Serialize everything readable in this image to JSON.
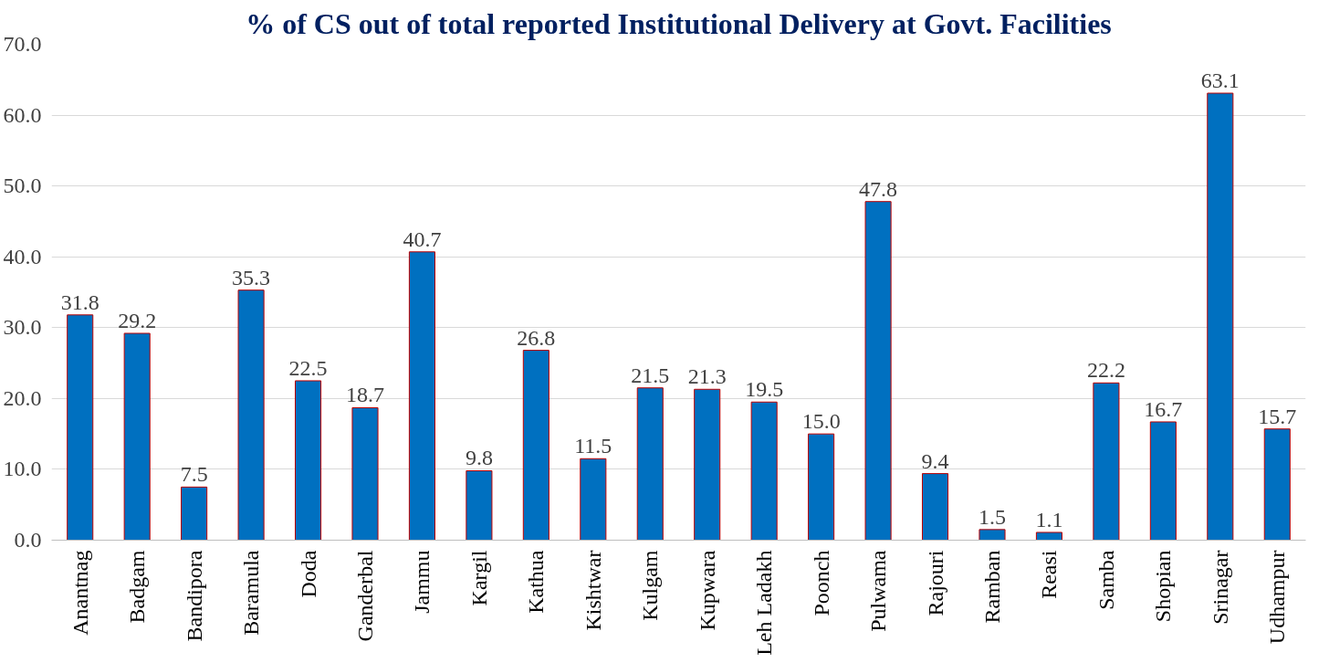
{
  "chart_data": {
    "type": "bar",
    "title": "% of CS out of total reported Institutional Delivery at Govt. Facilities",
    "categories": [
      "Anantnag",
      "Badgam",
      "Bandipora",
      "Baramula",
      "Doda",
      "Ganderbal",
      "Jammu",
      "Kargil",
      "Kathua",
      "Kishtwar",
      "Kulgam",
      "Kupwara",
      "Leh Ladakh",
      "Poonch",
      "Pulwama",
      "Rajouri",
      "Ramban",
      "Reasi",
      "Samba",
      "Shopian",
      "Srinagar",
      "Udhampur"
    ],
    "values": [
      31.8,
      29.2,
      7.5,
      35.3,
      22.5,
      18.7,
      40.7,
      9.8,
      26.8,
      11.5,
      21.5,
      21.3,
      19.5,
      15.0,
      47.8,
      9.4,
      1.5,
      1.1,
      22.2,
      16.7,
      63.1,
      15.7
    ],
    "value_labels": [
      "31.8",
      "29.2",
      "7.5",
      "35.3",
      "22.5",
      "18.7",
      "40.7",
      "9.8",
      "26.8",
      "11.5",
      "21.5",
      "21.3",
      "19.5",
      "15.0",
      "47.8",
      "9.4",
      "1.5",
      "1.1",
      "22.2",
      "16.7",
      "63.1",
      "15.7"
    ],
    "color": "#0070c0",
    "ylim": [
      0,
      70
    ],
    "yticks": [
      {
        "value": 0,
        "label": "0.0"
      },
      {
        "value": 10,
        "label": "10.0"
      },
      {
        "value": 20,
        "label": "20.0"
      },
      {
        "value": 30,
        "label": "30.0"
      },
      {
        "value": 40,
        "label": "40.0"
      },
      {
        "value": 50,
        "label": "50.0"
      },
      {
        "value": 60,
        "label": "60.0"
      },
      {
        "value": 70,
        "label": "70.0"
      }
    ],
    "grid": "y"
  }
}
